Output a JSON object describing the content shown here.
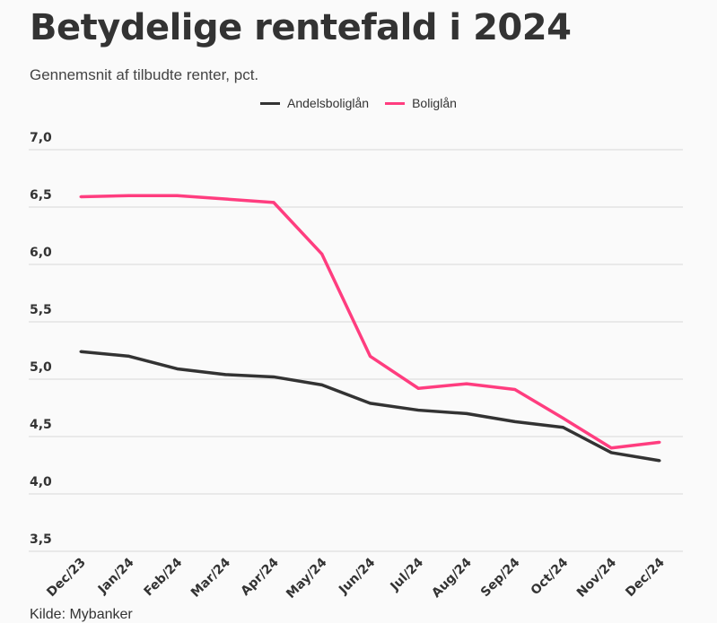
{
  "chart_data": {
    "type": "line",
    "title": "Betydelige rentefald i 2024",
    "subtitle": "Gennemsnit af tilbudte renter, pct.",
    "source": "Kilde: Mybanker",
    "xlabel": "",
    "ylabel": "",
    "ylim": [
      3.5,
      7.0
    ],
    "yticks": [
      "3,5",
      "4,0",
      "4,5",
      "5,0",
      "5,5",
      "6,0",
      "6,5",
      "7,0"
    ],
    "ytick_values": [
      3.5,
      4.0,
      4.5,
      5.0,
      5.5,
      6.0,
      6.5,
      7.0
    ],
    "grid": true,
    "legend_placement": "top-center",
    "categories": [
      "Dec/23",
      "Jan/24",
      "Feb/24",
      "Mar/24",
      "Apr/24",
      "May/24",
      "Jun/24",
      "Jul/24",
      "Aug/24",
      "Sep/24",
      "Oct/24",
      "Nov/24",
      "Dec/24"
    ],
    "series": [
      {
        "name": "Andelsboliglån",
        "color": "#333333",
        "values": [
          5.24,
          5.2,
          5.09,
          5.04,
          5.02,
          4.95,
          4.79,
          4.73,
          4.7,
          4.63,
          4.58,
          4.36,
          4.29
        ]
      },
      {
        "name": "Boliglån",
        "color": "#ff3d7f",
        "values": [
          6.59,
          6.6,
          6.6,
          6.57,
          6.54,
          6.09,
          5.2,
          4.92,
          4.96,
          4.91,
          4.66,
          4.4,
          4.45
        ]
      }
    ]
  }
}
